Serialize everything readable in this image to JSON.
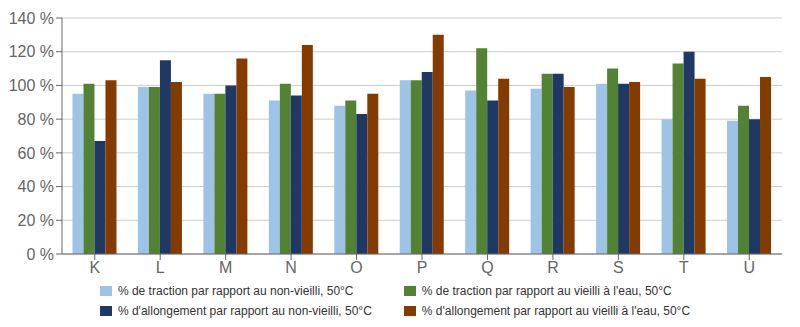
{
  "chart_data": {
    "type": "bar",
    "categories": [
      "K",
      "L",
      "M",
      "N",
      "O",
      "P",
      "Q",
      "R",
      "S",
      "T",
      "U"
    ],
    "series": [
      {
        "name": "% de traction par rapport au non-vieilli, 50°C",
        "color": "#9DC3E6",
        "values": [
          95,
          99,
          95,
          91,
          88,
          103,
          97,
          98,
          101,
          80,
          79
        ]
      },
      {
        "name": "% de traction par rapport au vieilli à l'eau, 50°C",
        "color": "#548235",
        "values": [
          101,
          99,
          95,
          101,
          91,
          103,
          122,
          107,
          110,
          113,
          88
        ]
      },
      {
        "name": "% d'allongement par rapport au non-vieilli, 50°C",
        "color": "#1F3864",
        "values": [
          67,
          115,
          100,
          94,
          83,
          108,
          91,
          107,
          101,
          120,
          80
        ]
      },
      {
        "name": "% d'allongement par rapport au vieilli à l'eau, 50°C",
        "color": "#833B00",
        "values": [
          103,
          102,
          116,
          124,
          95,
          130,
          104,
          99,
          102,
          104,
          105
        ]
      }
    ],
    "ylim": [
      0,
      140
    ],
    "yticks": [
      {
        "value": 0,
        "label": "0 %"
      },
      {
        "value": 20,
        "label": "20 %"
      },
      {
        "value": 40,
        "label": "40 %"
      },
      {
        "value": 60,
        "label": "60 %"
      },
      {
        "value": 80,
        "label": "80 %"
      },
      {
        "value": 100,
        "label": "100 %"
      },
      {
        "value": 120,
        "label": "120 %"
      },
      {
        "value": 140,
        "label": "140 %"
      }
    ],
    "grid": true,
    "legend": "bottom"
  }
}
